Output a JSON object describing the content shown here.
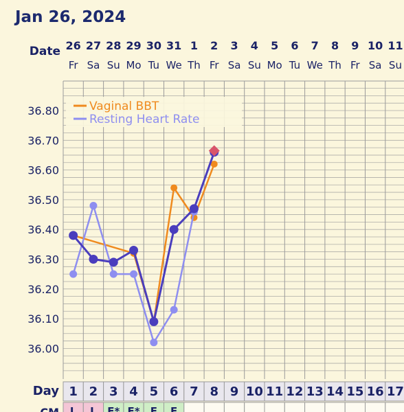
{
  "title": "Jan 26, 2024",
  "date_label": "Date",
  "day_label": "Day",
  "cm_label": "CM",
  "dates": [
    "26",
    "27",
    "28",
    "29",
    "30",
    "31",
    "1",
    "2",
    "3",
    "4",
    "5",
    "6",
    "7",
    "8",
    "9",
    "10",
    "11"
  ],
  "weekdays": [
    "Fr",
    "Sa",
    "Su",
    "Mo",
    "Tu",
    "We",
    "Th",
    "Fr",
    "Sa",
    "Su",
    "Mo",
    "Tu",
    "We",
    "Th",
    "Fr",
    "Sa",
    "Su"
  ],
  "days": [
    "1",
    "2",
    "3",
    "4",
    "5",
    "6",
    "7",
    "8",
    "9",
    "10",
    "11",
    "12",
    "13",
    "14",
    "15",
    "16",
    "17"
  ],
  "cm": [
    {
      "label": "L",
      "color": "#f4c6d6"
    },
    {
      "label": "L",
      "color": "#f4c6d6"
    },
    {
      "label": "F*",
      "color": "#cfeec6"
    },
    {
      "label": "F*",
      "color": "#cfeec6"
    },
    {
      "label": "F",
      "color": "#cfeec6"
    },
    {
      "label": "F",
      "color": "#cfeec6"
    }
  ],
  "colors": {
    "bbt": "#ef8a1e",
    "rhr": "#8e8ef0",
    "combined": "#4a3dbd",
    "marker": "#d9556a",
    "grid": "#9a9a9a",
    "day_cell": "#e9e7ee",
    "text": "#1a2266"
  },
  "chart_data": {
    "type": "line",
    "ylim": [
      35.93,
      36.87
    ],
    "yticks": [
      "36.80",
      "36.70",
      "36.60",
      "36.50",
      "36.40",
      "36.30",
      "36.20",
      "36.10",
      "36.00"
    ],
    "legend_position": "top-left",
    "series": [
      {
        "name": "Vaginal BBT",
        "key": "bbt",
        "x": [
          1,
          4,
          5,
          6,
          7,
          8
        ],
        "y": [
          36.38,
          36.32,
          36.09,
          36.54,
          36.44,
          36.62
        ]
      },
      {
        "name": "Resting Heart Rate",
        "key": "rhr",
        "x": [
          1,
          2,
          3,
          4,
          5,
          6,
          7
        ],
        "y": [
          36.25,
          36.48,
          36.25,
          36.25,
          36.02,
          36.13,
          36.46
        ]
      },
      {
        "name": "",
        "key": "combined",
        "x": [
          1,
          2,
          3,
          4,
          5,
          6,
          7,
          8
        ],
        "y": [
          36.38,
          36.3,
          36.29,
          36.33,
          36.09,
          36.4,
          36.47,
          36.66
        ]
      }
    ],
    "marker": {
      "x": 8,
      "y": 36.665
    }
  }
}
